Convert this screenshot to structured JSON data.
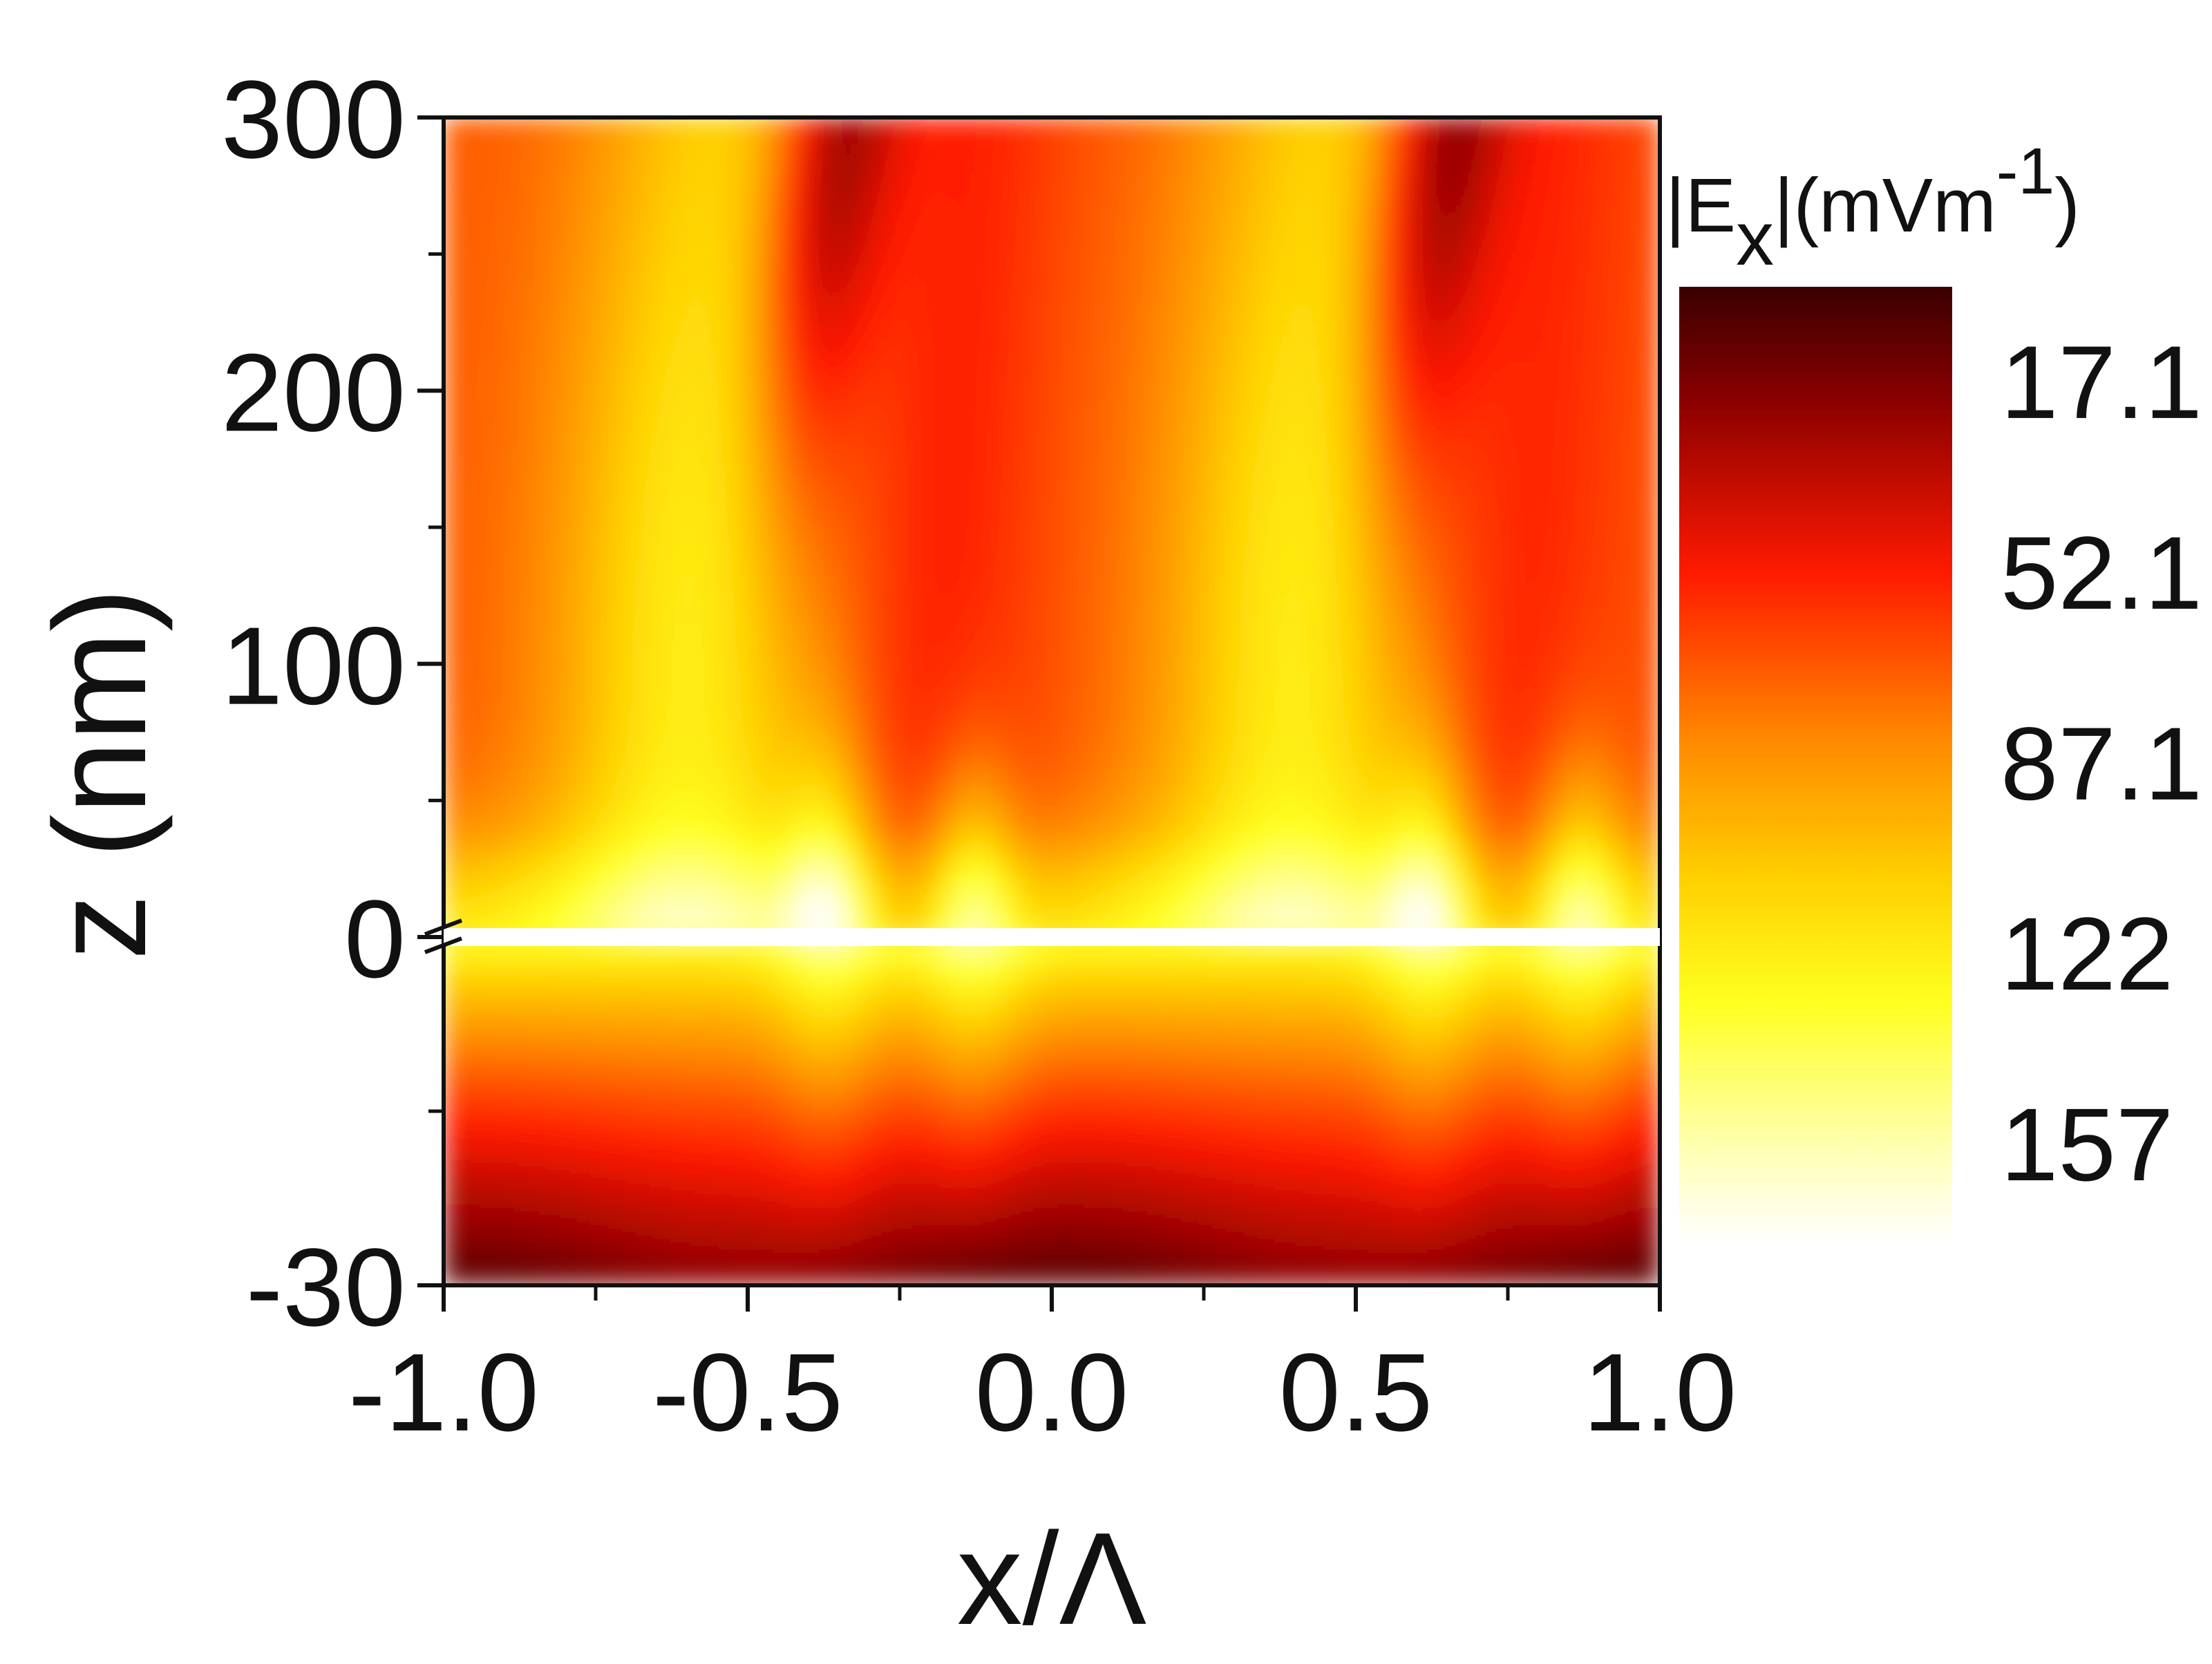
{
  "chart_data": {
    "type": "heatmap",
    "title": "",
    "xlabel": "x/Λ",
    "ylabel": "z (nm)",
    "x_range": [
      -1.0,
      1.0
    ],
    "x_ticks": [
      -1.0,
      -0.5,
      0.0,
      0.5,
      1.0
    ],
    "x_tick_labels": [
      "-1.0",
      "-0.5",
      "0.0",
      "0.5",
      "1.0"
    ],
    "y_axis_broken": true,
    "y_segments": [
      {
        "name": "upper",
        "range": [
          0,
          300
        ]
      },
      {
        "name": "lower",
        "range": [
          -30,
          0
        ]
      }
    ],
    "y_ticks": [
      300,
      200,
      100,
      0,
      -30
    ],
    "y_tick_labels": [
      "300",
      "200",
      "100",
      "0",
      "-30"
    ],
    "colorbar": {
      "title": "|Ex|(mVm-1)",
      "title_parts": {
        "bar_open": "|E",
        "sub": "x",
        "mid": "|(mVm",
        "sup": "-1",
        "close": ")"
      },
      "tick_values": [
        17.1,
        52.1,
        87.1,
        122,
        157
      ],
      "tick_labels": [
        "17.1",
        "52.1",
        "87.1",
        "122",
        "157"
      ],
      "range": [
        0,
        175
      ],
      "colormap": "hot (reversed)",
      "colors": [
        "#3a0000",
        "#8b0000",
        "#ff1a00",
        "#ff8c00",
        "#ffd000",
        "#ffff20",
        "#ffffd0"
      ]
    },
    "field_features": {
      "upper_bright_lobes_x": [
        -0.6,
        0.4
      ],
      "upper_dark_stripes_x": [
        -0.45,
        0.55
      ],
      "interface_hotspots_x": [
        -0.37,
        -0.13,
        0.62,
        0.87
      ],
      "lower_region_trend": "decreasing field away from interface"
    }
  }
}
